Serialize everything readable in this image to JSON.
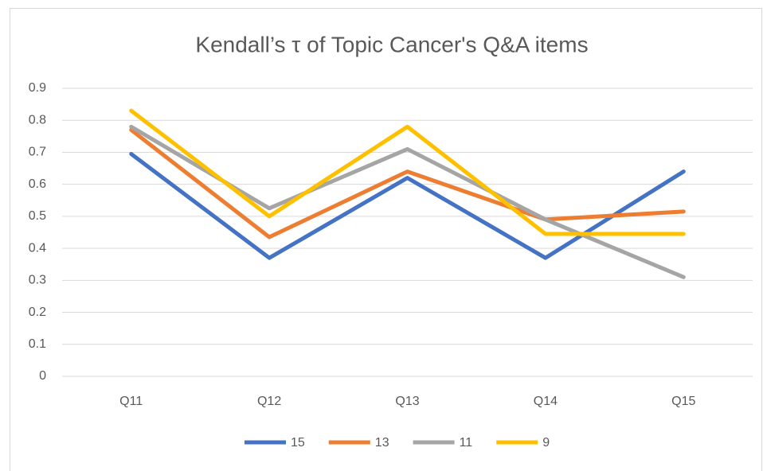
{
  "chart_data": {
    "type": "line",
    "title": "Kendall’s τ of Topic Cancer's  Q&A items",
    "categories": [
      "Q11",
      "Q12",
      "Q13",
      "Q14",
      "Q15"
    ],
    "series": [
      {
        "name": "15",
        "color": "#4472c4",
        "values": [
          0.695,
          0.37,
          0.62,
          0.37,
          0.64
        ]
      },
      {
        "name": "13",
        "color": "#ed7d31",
        "values": [
          0.77,
          0.435,
          0.64,
          0.49,
          0.515
        ]
      },
      {
        "name": "11",
        "color": "#a5a5a5",
        "values": [
          0.78,
          0.525,
          0.71,
          0.49,
          0.31
        ]
      },
      {
        "name": "9",
        "color": "#ffc000",
        "values": [
          0.83,
          0.5,
          0.78,
          0.445,
          0.445
        ]
      }
    ],
    "ylim": [
      0,
      0.9
    ],
    "yticks": [
      0,
      0.1,
      0.2,
      0.3,
      0.4,
      0.5,
      0.6,
      0.7,
      0.8,
      0.9
    ],
    "grid": true,
    "legend": "bottom"
  }
}
